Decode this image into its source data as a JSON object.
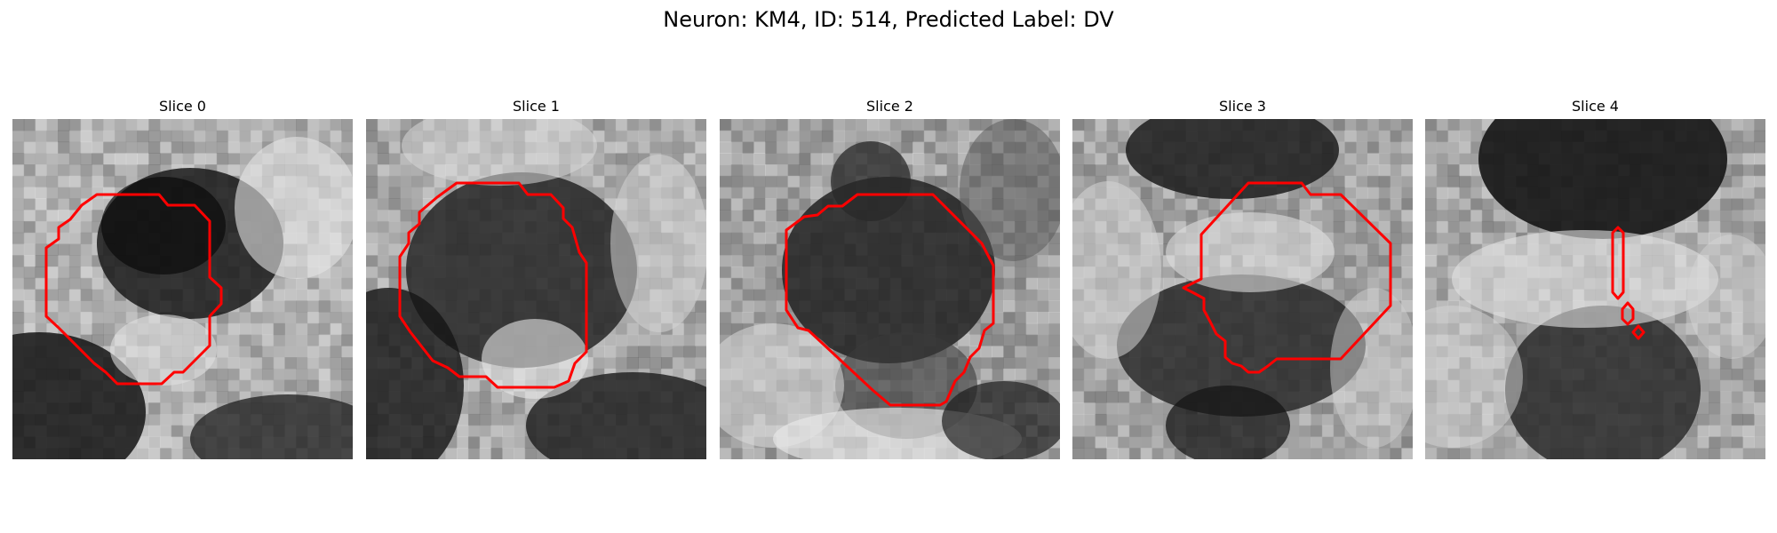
{
  "figure": {
    "title": "Neuron: KM4, ID: 514, Predicted Label: DV"
  },
  "colors": {
    "contour": "#ff0000",
    "background": "#ffffff"
  },
  "panels": [
    {
      "title": "Slice 0"
    },
    {
      "title": "Slice 1"
    },
    {
      "title": "Slice 2"
    },
    {
      "title": "Slice 3"
    },
    {
      "title": "Slice 4"
    }
  ]
}
